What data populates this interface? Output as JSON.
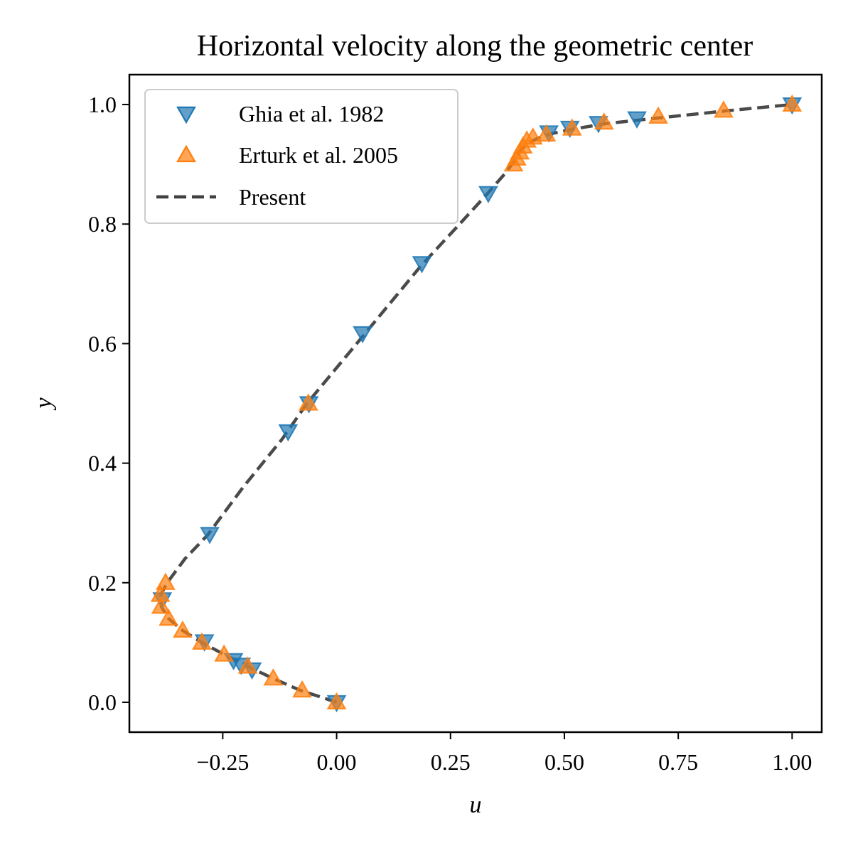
{
  "chart_data": {
    "type": "scatter",
    "title": "Horizontal velocity along the geometric center",
    "xlabel": "u",
    "ylabel": "y",
    "xlim": [
      -0.455,
      1.065
    ],
    "ylim": [
      -0.05,
      1.05
    ],
    "xticks": [
      -0.25,
      0.0,
      0.25,
      0.5,
      0.75,
      1.0
    ],
    "xtick_labels": [
      "−0.25",
      "0.00",
      "0.25",
      "0.50",
      "0.75",
      "1.00"
    ],
    "yticks": [
      0.0,
      0.2,
      0.4,
      0.6,
      0.8,
      1.0
    ],
    "ytick_labels": [
      "0.0",
      "0.2",
      "0.4",
      "0.6",
      "0.8",
      "1.0"
    ],
    "grid": false,
    "legend_position": "top-left",
    "series": [
      {
        "name": "Ghia et al. 1982",
        "kind": "scatter",
        "marker": "triangle-down",
        "color": "#1f77b4",
        "points": [
          [
            0.0,
            0.0
          ],
          [
            -0.1857,
            0.0547
          ],
          [
            -0.2096,
            0.0625
          ],
          [
            -0.2263,
            0.0703
          ],
          [
            -0.2901,
            0.1016
          ],
          [
            -0.3827,
            0.1719
          ],
          [
            -0.2786,
            0.2813
          ],
          [
            -0.1065,
            0.4531
          ],
          [
            -0.0608,
            0.5
          ],
          [
            0.057,
            0.6172
          ],
          [
            0.1872,
            0.7344
          ],
          [
            0.333,
            0.8516
          ],
          [
            0.466,
            0.9531
          ],
          [
            0.5121,
            0.9609
          ],
          [
            0.5749,
            0.9688
          ],
          [
            0.6593,
            0.9766
          ],
          [
            1.0,
            1.0
          ]
        ]
      },
      {
        "name": "Erturk et al. 2005",
        "kind": "scatter",
        "marker": "triangle-up",
        "color": "#ff7f0e",
        "points": [
          [
            0.0,
            0.0
          ],
          [
            -0.0757,
            0.02
          ],
          [
            -0.1392,
            0.04
          ],
          [
            -0.1951,
            0.06
          ],
          [
            -0.2472,
            0.08
          ],
          [
            -0.296,
            0.1
          ],
          [
            -0.3381,
            0.12
          ],
          [
            -0.369,
            0.14
          ],
          [
            -0.3854,
            0.16
          ],
          [
            -0.3869,
            0.18
          ],
          [
            -0.3756,
            0.2
          ],
          [
            -0.062,
            0.5
          ],
          [
            0.3885,
            0.9
          ],
          [
            0.3955,
            0.91
          ],
          [
            0.4022,
            0.92
          ],
          [
            0.409,
            0.93
          ],
          [
            0.4176,
            0.94
          ],
          [
            0.431,
            0.945
          ],
          [
            0.4603,
            0.95
          ],
          [
            0.5169,
            0.96
          ],
          [
            0.5871,
            0.97
          ],
          [
            0.7061,
            0.98
          ],
          [
            0.8495,
            0.99
          ],
          [
            1.0,
            1.0
          ]
        ]
      },
      {
        "name": "Present",
        "kind": "line",
        "dash": true,
        "color": "#404040",
        "points": [
          [
            0.0,
            0.0
          ],
          [
            -0.04,
            0.01
          ],
          [
            -0.08,
            0.02
          ],
          [
            -0.14,
            0.04
          ],
          [
            -0.195,
            0.06
          ],
          [
            -0.247,
            0.08
          ],
          [
            -0.296,
            0.1
          ],
          [
            -0.338,
            0.12
          ],
          [
            -0.369,
            0.14
          ],
          [
            -0.385,
            0.16
          ],
          [
            -0.386,
            0.18
          ],
          [
            -0.372,
            0.2
          ],
          [
            -0.333,
            0.24
          ],
          [
            -0.283,
            0.28
          ],
          [
            -0.205,
            0.36
          ],
          [
            -0.12,
            0.44
          ],
          [
            -0.065,
            0.5
          ],
          [
            0.055,
            0.61
          ],
          [
            0.185,
            0.73
          ],
          [
            0.27,
            0.8
          ],
          [
            0.33,
            0.85
          ],
          [
            0.37,
            0.885
          ],
          [
            0.39,
            0.905
          ],
          [
            0.405,
            0.925
          ],
          [
            0.42,
            0.935
          ],
          [
            0.44,
            0.943
          ],
          [
            0.47,
            0.951
          ],
          [
            0.52,
            0.959
          ],
          [
            0.59,
            0.968
          ],
          [
            0.7,
            0.977
          ],
          [
            0.85,
            0.989
          ],
          [
            1.0,
            1.0
          ]
        ]
      }
    ]
  }
}
